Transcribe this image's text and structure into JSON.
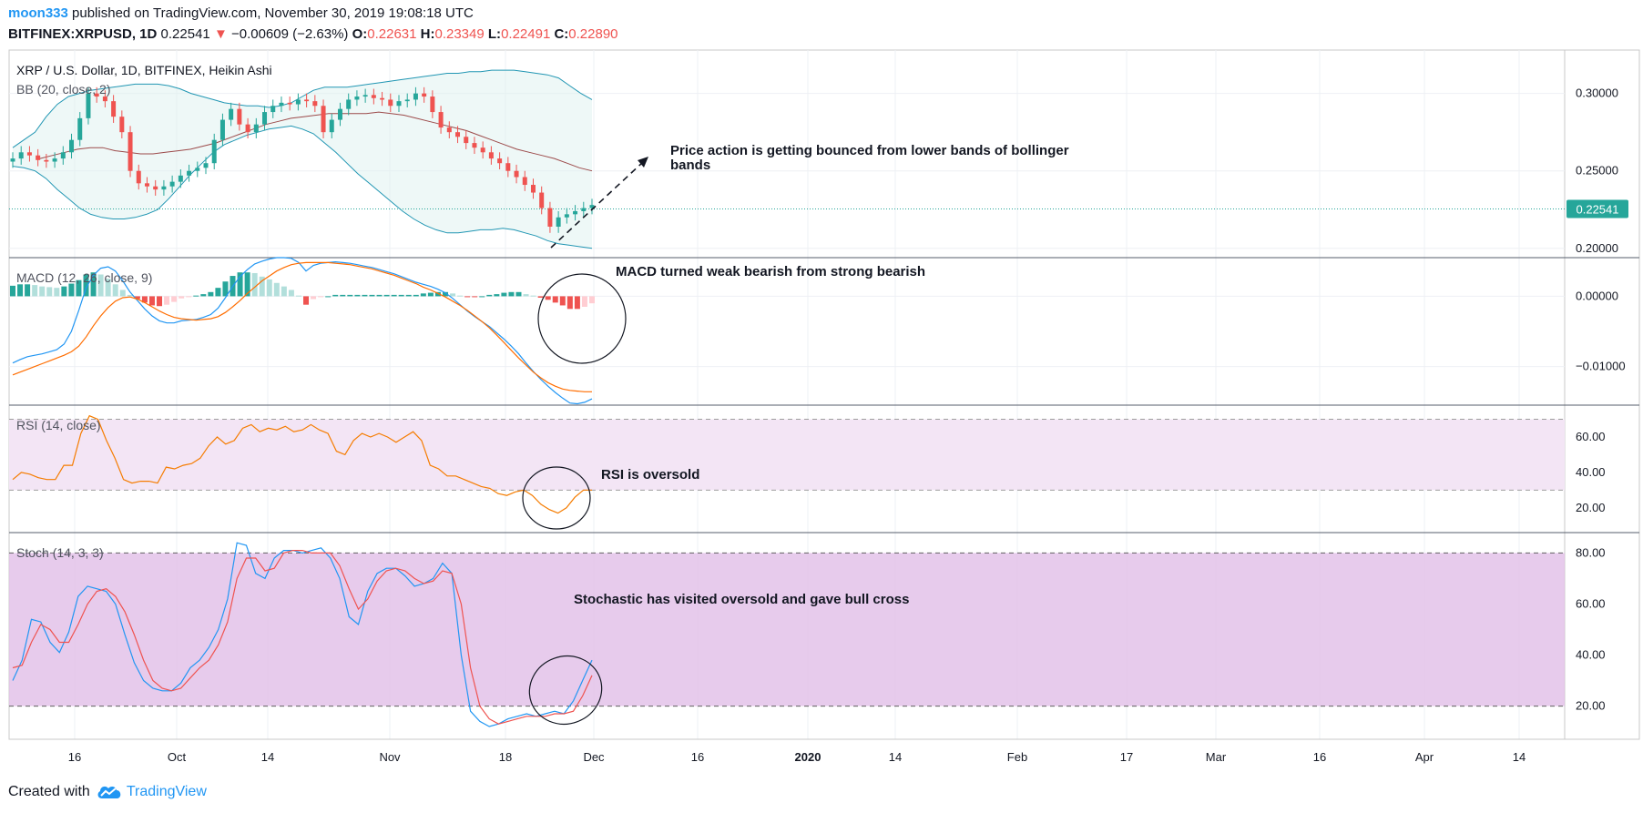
{
  "header": {
    "author": "moon333",
    "published_text": "published on TradingView.com, November 30, 2019 19:08:18 UTC",
    "symbol": "BITFINEX:XRPUSD, 1D",
    "last": "0.22541",
    "change_arrow": "▼",
    "change": "−0.00609 (−2.63%)",
    "o_label": "O:",
    "o": "0.22631",
    "h_label": "H:",
    "h": "0.23349",
    "l_label": "L:",
    "l": "0.22491",
    "c_label": "C:",
    "c": "0.22890"
  },
  "footer": {
    "created_with": "Created with",
    "brand": "TradingView",
    "logo_icon": "tradingview-cloud-icon"
  },
  "colors": {
    "up": "#26a69a",
    "down": "#ef5350",
    "bb": "#2196b3",
    "bb_mid": "#9c4a4a",
    "macd": "#2196f3",
    "signal": "#ff6d00",
    "hist_up_strong": "#26a69a",
    "hist_up_weak": "#b2dfdb",
    "hist_down_strong": "#ef5350",
    "hist_down_weak": "#ffcdd2",
    "rsi": "#f57c00",
    "rsi_band": "#f3e5f5",
    "stoch_band": "#e1bee7",
    "stoch_k": "#2196f3",
    "stoch_d": "#ef5350"
  },
  "chart_data": {
    "type": "candlestick",
    "date_range": [
      "2019-09-10",
      "2019-11-30"
    ],
    "x_axis_labels": [
      "16",
      "Oct",
      "14",
      "Nov",
      "18",
      "Dec",
      "16",
      "2020",
      "14",
      "Feb",
      "17",
      "Mar",
      "16",
      "Apr",
      "14"
    ],
    "panels": [
      {
        "id": "price",
        "title": "XRP / U.S. Dollar, 1D, BITFINEX, Heikin Ashi",
        "indicator": "BB (20, close, 2)",
        "y_ticks": [
          "0.30000",
          "0.25000",
          "0.20000"
        ],
        "ylim": [
          0.194,
          0.328
        ],
        "last_price_label": "0.22541",
        "close": [
          0.258,
          0.262,
          0.26,
          0.257,
          0.256,
          0.258,
          0.262,
          0.27,
          0.284,
          0.3,
          0.298,
          0.295,
          0.285,
          0.275,
          0.25,
          0.242,
          0.24,
          0.238,
          0.24,
          0.243,
          0.247,
          0.25,
          0.252,
          0.255,
          0.27,
          0.283,
          0.29,
          0.28,
          0.275,
          0.28,
          0.288,
          0.292,
          0.294,
          0.293,
          0.296,
          0.295,
          0.292,
          0.275,
          0.283,
          0.29,
          0.296,
          0.298,
          0.299,
          0.297,
          0.296,
          0.292,
          0.295,
          0.296,
          0.3,
          0.298,
          0.288,
          0.278,
          0.275,
          0.272,
          0.268,
          0.265,
          0.262,
          0.258,
          0.255,
          0.25,
          0.246,
          0.241,
          0.236,
          0.226,
          0.214,
          0.22,
          0.222,
          0.224,
          0.226,
          0.228
        ],
        "bb_upper": [
          0.265,
          0.27,
          0.275,
          0.285,
          0.293,
          0.298,
          0.3,
          0.302,
          0.303,
          0.304,
          0.305,
          0.306,
          0.306,
          0.306,
          0.305,
          0.303,
          0.3,
          0.298,
          0.296,
          0.294,
          0.293,
          0.292,
          0.292,
          0.291,
          0.292,
          0.294,
          0.298,
          0.302,
          0.304,
          0.304,
          0.304,
          0.305,
          0.306,
          0.307,
          0.308,
          0.309,
          0.31,
          0.311,
          0.312,
          0.313,
          0.313,
          0.314,
          0.314,
          0.315,
          0.315,
          0.315,
          0.314,
          0.313,
          0.312,
          0.31,
          0.305,
          0.3,
          0.296
        ],
        "bb_lower": [
          0.253,
          0.252,
          0.25,
          0.245,
          0.238,
          0.232,
          0.226,
          0.222,
          0.22,
          0.219,
          0.219,
          0.22,
          0.222,
          0.225,
          0.232,
          0.24,
          0.248,
          0.255,
          0.262,
          0.267,
          0.27,
          0.273,
          0.275,
          0.277,
          0.278,
          0.279,
          0.277,
          0.274,
          0.268,
          0.262,
          0.255,
          0.248,
          0.242,
          0.236,
          0.23,
          0.224,
          0.219,
          0.215,
          0.212,
          0.21,
          0.21,
          0.211,
          0.212,
          0.212,
          0.213,
          0.212,
          0.21,
          0.208,
          0.205,
          0.203,
          0.202,
          0.201,
          0.2
        ],
        "bb_middle": [
          0.258,
          0.26,
          0.262,
          0.264,
          0.265,
          0.265,
          0.263,
          0.262,
          0.261,
          0.261,
          0.262,
          0.263,
          0.264,
          0.266,
          0.268,
          0.271,
          0.274,
          0.277,
          0.28,
          0.282,
          0.284,
          0.285,
          0.286,
          0.287,
          0.287,
          0.287,
          0.287,
          0.288,
          0.287,
          0.286,
          0.284,
          0.282,
          0.28,
          0.278,
          0.276,
          0.273,
          0.27,
          0.267,
          0.264,
          0.262,
          0.26,
          0.258,
          0.255,
          0.252,
          0.25
        ],
        "annotation": "Price action is getting bounced from lower bands of bollinger bands"
      },
      {
        "id": "macd",
        "indicator": "MACD (12, 26, close, 9)",
        "y_ticks": [
          "0.00000",
          "−0.01000"
        ],
        "ylim": [
          -0.0155,
          0.0055
        ],
        "macd": [
          -0.0095,
          -0.009,
          -0.0086,
          -0.0084,
          -0.0082,
          -0.0079,
          -0.0076,
          -0.0068,
          -0.005,
          -0.002,
          0.0012,
          0.003,
          0.004,
          0.0042,
          0.0036,
          0.0022,
          0.0006,
          -0.0006,
          -0.0018,
          -0.0028,
          -0.0035,
          -0.0038,
          -0.0038,
          -0.0035,
          -0.0034,
          -0.0033,
          -0.003,
          -0.0026,
          -0.0017,
          -0.0002,
          0.0014,
          0.0028,
          0.0038,
          0.0046,
          0.005,
          0.0053,
          0.0055,
          0.0055,
          0.0054,
          0.0048,
          0.0036,
          0.0044,
          0.0047,
          0.0048,
          0.0049,
          0.0048,
          0.0047,
          0.0045,
          0.0043,
          0.0041,
          0.0038,
          0.0035,
          0.0032,
          0.0028,
          0.0024,
          0.002,
          0.0017,
          0.0014,
          0.001,
          0.0005,
          -0.0003,
          -0.0012,
          -0.0021,
          -0.0029,
          -0.0036,
          -0.0043,
          -0.0052,
          -0.0061,
          -0.0071,
          -0.0082,
          -0.0095,
          -0.0107,
          -0.0118,
          -0.0128,
          -0.0137,
          -0.0145,
          -0.0152,
          -0.0153,
          -0.0151,
          -0.0146
        ],
        "signal": [
          -0.0112,
          -0.0108,
          -0.0104,
          -0.01,
          -0.0096,
          -0.0092,
          -0.0088,
          -0.0084,
          -0.0079,
          -0.0071,
          -0.0058,
          -0.0042,
          -0.0028,
          -0.0016,
          -0.0007,
          -0.0002,
          -0.0001,
          -0.0004,
          -0.0009,
          -0.0015,
          -0.0021,
          -0.0026,
          -0.003,
          -0.0032,
          -0.0033,
          -0.0034,
          -0.0033,
          -0.0032,
          -0.0029,
          -0.0023,
          -0.0015,
          -0.0006,
          0.0004,
          0.0013,
          0.0022,
          0.0029,
          0.0036,
          0.0041,
          0.0045,
          0.0047,
          0.0048,
          0.0048,
          0.0048,
          0.0048,
          0.0047,
          0.0046,
          0.0045,
          0.0043,
          0.0041,
          0.0039,
          0.0036,
          0.0033,
          0.003,
          0.0026,
          0.0022,
          0.0018,
          0.0013,
          0.0009,
          0.0004,
          -0.0001,
          -0.0007,
          -0.0013,
          -0.002,
          -0.0028,
          -0.0036,
          -0.0045,
          -0.0055,
          -0.0066,
          -0.0077,
          -0.0088,
          -0.0098,
          -0.0108,
          -0.0116,
          -0.0123,
          -0.0128,
          -0.0132,
          -0.0134,
          -0.0135,
          -0.0136,
          -0.0136
        ],
        "histogram": [
          0.0015,
          0.0017,
          0.0017,
          0.0016,
          0.0014,
          0.0013,
          0.0012,
          0.0014,
          0.0018,
          0.0023,
          0.0031,
          0.0034,
          0.0031,
          0.0025,
          0.0017,
          0.0009,
          0.0002,
          -0.0004,
          -0.0009,
          -0.0013,
          -0.0014,
          -0.0012,
          -0.0008,
          -0.0003,
          -0.0001,
          0.0001,
          0.0003,
          0.0006,
          0.0012,
          0.0021,
          0.0029,
          0.0034,
          0.0034,
          0.0033,
          0.0028,
          0.0024,
          0.0019,
          0.0014,
          0.0009,
          0.0001,
          -0.0012,
          -0.0004,
          -0.0001,
          0.0,
          0.0002,
          0.0002,
          0.0002,
          0.0002,
          0.0002,
          0.0002,
          0.0002,
          0.0002,
          0.0002,
          0.0002,
          0.0002,
          0.0002,
          0.0004,
          0.0005,
          0.0006,
          0.0006,
          0.0004,
          0.0001,
          -0.0001,
          -0.0001,
          0.0,
          0.0002,
          0.0003,
          0.0005,
          0.0006,
          0.0006,
          0.0003,
          0.0001,
          -0.0002,
          -0.0005,
          -0.0009,
          -0.0013,
          -0.0018,
          -0.0018,
          -0.0015,
          -0.001
        ],
        "annotation": "MACD turned weak bearish from strong bearish"
      },
      {
        "id": "rsi",
        "indicator": "RSI (14, close)",
        "y_ticks": [
          "60.00",
          "40.00",
          "20.00"
        ],
        "ylim": [
          6,
          78
        ],
        "bands": [
          30,
          70
        ],
        "values": [
          36,
          40,
          39,
          37,
          36,
          36,
          44,
          44,
          62,
          72,
          70,
          58,
          48,
          36,
          34,
          35,
          35,
          34,
          43,
          42,
          44,
          45,
          48,
          55,
          60,
          56,
          58,
          65,
          67,
          63,
          65,
          64,
          66,
          63,
          64,
          67,
          64,
          62,
          52,
          50,
          58,
          62,
          60,
          62,
          60,
          57,
          60,
          63,
          58,
          44,
          42,
          38,
          38,
          36,
          34,
          32,
          31,
          28,
          27,
          29,
          30,
          27,
          22,
          19,
          17,
          20,
          26,
          30,
          30
        ],
        "annotation": "RSI is oversold"
      },
      {
        "id": "stoch",
        "indicator": "Stoch (14, 3, 3)",
        "y_ticks": [
          "80.00",
          "60.00",
          "40.00",
          "20.00"
        ],
        "ylim": [
          7,
          88
        ],
        "bands": [
          20,
          80
        ],
        "k": [
          30,
          38,
          54,
          53,
          45,
          41,
          49,
          63,
          67,
          66,
          65,
          60,
          48,
          37,
          30,
          27,
          26,
          26,
          29,
          35,
          38,
          43,
          50,
          62,
          84,
          83,
          72,
          70,
          78,
          81,
          81,
          80,
          81,
          82,
          78,
          70,
          55,
          52,
          65,
          72,
          74,
          74,
          71,
          67,
          68,
          70,
          76,
          72,
          40,
          18,
          14,
          12,
          13,
          15,
          16,
          17,
          16,
          17,
          18,
          17,
          22,
          30,
          38
        ],
        "d": [
          35,
          36,
          45,
          52,
          50,
          45,
          45,
          52,
          60,
          65,
          66,
          63,
          57,
          48,
          38,
          30,
          27,
          26,
          27,
          31,
          35,
          38,
          44,
          53,
          70,
          78,
          78,
          73,
          74,
          80,
          81,
          81,
          80,
          80,
          80,
          75,
          66,
          58,
          62,
          69,
          73,
          74,
          73,
          70,
          68,
          69,
          73,
          72,
          60,
          35,
          20,
          15,
          13,
          14,
          15,
          16,
          16,
          16,
          17,
          17,
          18,
          24,
          32
        ],
        "annotation": "Stochastic has visited oversold and gave bull cross"
      }
    ]
  }
}
